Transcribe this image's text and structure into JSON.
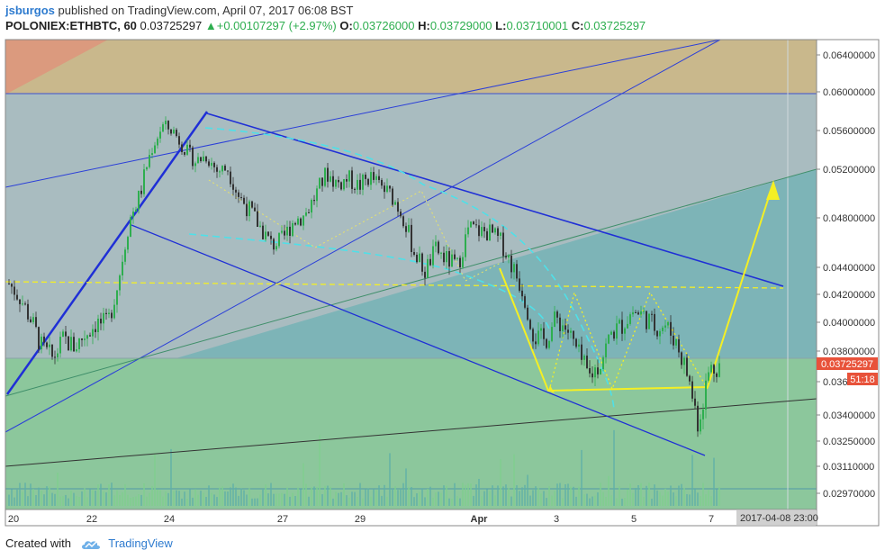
{
  "header": {
    "author": "jsburgos",
    "published": "published on TradingView.com, April 07, 2017 06:08 BST",
    "symbol": "POLONIEX:ETHBTC, 60",
    "last": "0.03725297",
    "change": "+0.00107297 (+2.97%)",
    "open_label": "O:",
    "open": "0.03726000",
    "high_label": "H:",
    "high": "0.03729000",
    "low_label": "L:",
    "low": "0.03710001",
    "close_label": "C:",
    "close": "0.03725297"
  },
  "footer": {
    "created_with": "Created with",
    "brand": "TradingView"
  },
  "colors": {
    "up": "#2eae4f",
    "down": "#333333",
    "trend": "#1f2fd6",
    "pattern": "#f4ef24",
    "fib_top": "#e08080",
    "fib_gold": "#c8b87a",
    "fib_blue": "#9bb8c8",
    "fib_teal": "#6fb6b8",
    "fib_green": "#86c79a"
  },
  "chart_data": {
    "type": "line",
    "title": "",
    "xlabel": "",
    "ylabel": "",
    "x_ticks": [
      "20",
      "22",
      "24",
      "27",
      "29",
      "Apr",
      "3",
      "5",
      "7"
    ],
    "x_cursor_label": "2017-04-08 23:00",
    "y_ticks": [
      "0.06400000",
      "0.06000000",
      "0.05600000",
      "0.05200000",
      "0.04800000",
      "0.04400000",
      "0.04200000",
      "0.04000000",
      "0.03800000",
      "0.036",
      "0.03400000",
      "0.03250000",
      "0.03110000",
      "0.02970000"
    ],
    "price_label": "0.03725297",
    "countdown_label": "51:18",
    "ylim": [
      0.0285,
      0.0665
    ],
    "series": [
      {
        "values": [
          0.0428,
          0.0418,
          0.0402,
          0.0382,
          0.0375,
          0.0388,
          0.0383,
          0.0392,
          0.04,
          0.0398,
          0.043,
          0.0478,
          0.05,
          0.054,
          0.0565,
          0.056,
          0.0542,
          0.0528,
          0.0534,
          0.0519,
          0.0521,
          0.0498,
          0.0486,
          0.0472,
          0.0458,
          0.0462,
          0.0478,
          0.0482,
          0.0498,
          0.0517,
          0.0508,
          0.0512,
          0.0506,
          0.0514,
          0.0505,
          0.0498,
          0.0482,
          0.0453,
          0.0437,
          0.0454,
          0.0446,
          0.0441,
          0.0472,
          0.0469,
          0.0468,
          0.046,
          0.0441,
          0.0422,
          0.039,
          0.0387,
          0.0403,
          0.0395,
          0.0378,
          0.0363,
          0.0372,
          0.0392,
          0.0398,
          0.0408,
          0.0405,
          0.0397,
          0.0398,
          0.0386,
          0.0365,
          0.0335,
          0.0368,
          0.0372
        ]
      }
    ]
  }
}
